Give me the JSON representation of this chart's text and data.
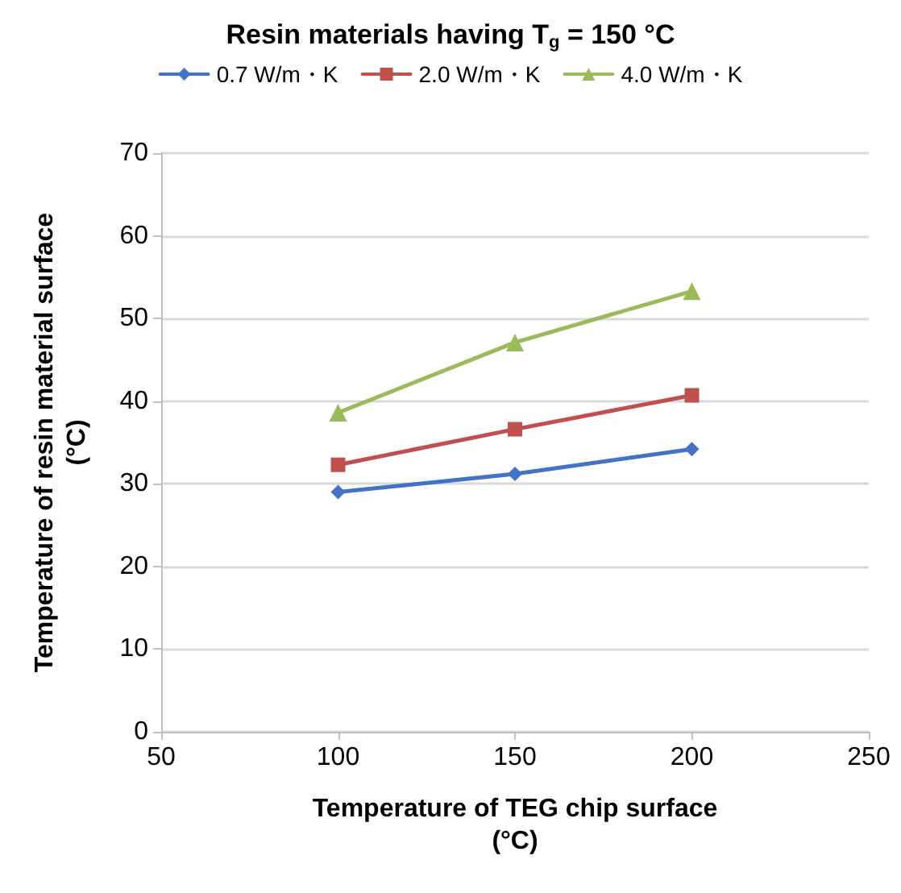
{
  "chart_data": {
    "type": "line",
    "title": "Resin materials having T$_{g}$ = 150 °C",
    "xlabel": "Temperature of TEG chip surface\n(°C)",
    "ylabel": "Temperature of resin material surface\n(°C)",
    "x": [
      100,
      150,
      200
    ],
    "series": [
      {
        "name": "0.7 W/m・K",
        "color": "#4472c4",
        "marker": "diamond",
        "values": [
          29,
          31.2,
          34.2
        ]
      },
      {
        "name": "2.0 W/m・K",
        "color": "#c0504d",
        "marker": "square",
        "values": [
          32.3,
          36.6,
          40.7
        ]
      },
      {
        "name": "4.0 W/m・K",
        "color": "#9bbb59",
        "marker": "triangle",
        "values": [
          38.6,
          47.1,
          53.3
        ]
      }
    ],
    "xlim": [
      50,
      250
    ],
    "xticks": [
      50,
      100,
      150,
      200,
      250
    ],
    "ylim": [
      0,
      70
    ],
    "yticks": [
      0,
      10,
      20,
      30,
      40,
      50,
      60,
      70
    ],
    "grid": "y",
    "legend": "top",
    "line_style": "solid"
  }
}
